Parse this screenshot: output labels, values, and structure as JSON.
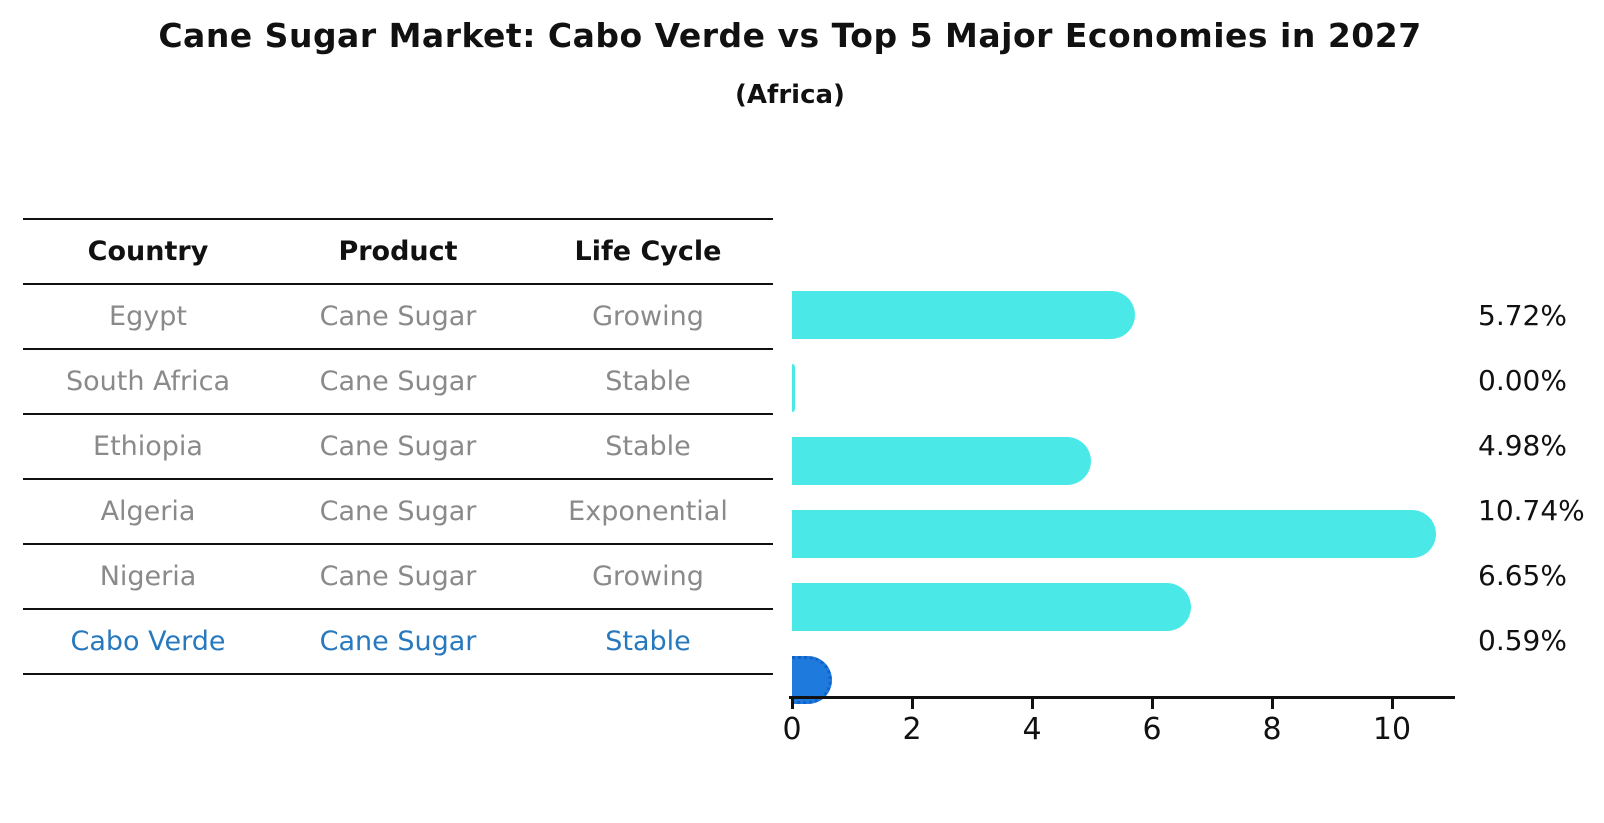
{
  "title": "Cane Sugar Market: Cabo Verde vs Top 5 Major Economies in 2027",
  "subtitle": "(Africa)",
  "table": {
    "headers": [
      "Country",
      "Product",
      "Life Cycle"
    ],
    "rows": [
      {
        "country": "Egypt",
        "product": "Cane Sugar",
        "life_cycle": "Growing",
        "highlight": false
      },
      {
        "country": "South Africa",
        "product": "Cane Sugar",
        "life_cycle": "Stable",
        "highlight": false
      },
      {
        "country": "Ethiopia",
        "product": "Cane Sugar",
        "life_cycle": "Stable",
        "highlight": false
      },
      {
        "country": "Algeria",
        "product": "Cane Sugar",
        "life_cycle": "Exponential",
        "highlight": false
      },
      {
        "country": "Nigeria",
        "product": "Cane Sugar",
        "life_cycle": "Growing",
        "highlight": false
      },
      {
        "country": "Cabo Verde",
        "product": "Cane Sugar",
        "life_cycle": "Stable",
        "highlight": true
      }
    ]
  },
  "chart_data": {
    "type": "bar",
    "orientation": "horizontal",
    "title": "Cane Sugar Market: Cabo Verde vs Top 5 Major Economies in 2027",
    "subtitle": "(Africa)",
    "categories": [
      "Egypt",
      "South Africa",
      "Ethiopia",
      "Algeria",
      "Nigeria",
      "Cabo Verde"
    ],
    "values": [
      5.72,
      0.0,
      4.98,
      10.74,
      6.65,
      0.59
    ],
    "value_labels": [
      "5.72%",
      "0.00%",
      "4.98%",
      "10.74%",
      "6.65%",
      "0.59%"
    ],
    "x_ticks": [
      "0",
      "2",
      "4",
      "6",
      "8",
      "10"
    ],
    "xlim": [
      0,
      11
    ],
    "grid": false,
    "legend": "none",
    "bar_color": "#4BE8E8",
    "highlight_color": "#1E7ADC",
    "highlight_index": 5
  },
  "colors": {
    "bar_cyan": "#4BE8E8",
    "bar_blue": "#1E7ADC",
    "highlight_text": "#2878BE",
    "row_text": "#8a8a8a",
    "line": "#111111"
  }
}
